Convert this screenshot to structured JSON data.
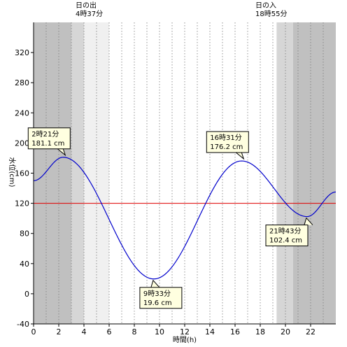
{
  "chart_data": {
    "type": "line",
    "title": "",
    "xlabel": "時間(h)",
    "ylabel": "水位(cm)",
    "xlim": [
      0,
      24
    ],
    "ylim": [
      -40,
      360
    ],
    "x_ticks": [
      0,
      2,
      4,
      6,
      8,
      10,
      12,
      14,
      16,
      18,
      20,
      22
    ],
    "y_ticks": [
      -40,
      0,
      40,
      80,
      120,
      160,
      200,
      240,
      280,
      320
    ],
    "grid": "vertical dotted every 1h",
    "sunrise": {
      "label": "日の出",
      "time": "4時37分",
      "hour": 4.617
    },
    "sunset": {
      "label": "日の入",
      "time": "18時55分",
      "hour": 18.917
    },
    "shading": [
      {
        "from": 0,
        "to": 3.0,
        "color": "#c0c0c0"
      },
      {
        "from": 3.0,
        "to": 4.0,
        "color": "#d6d6d6"
      },
      {
        "from": 4.0,
        "to": 6.0,
        "color": "#f0f0f0"
      },
      {
        "from": 19.3,
        "to": 20.6,
        "color": "#d6d6d6"
      },
      {
        "from": 20.6,
        "to": 24,
        "color": "#c0c0c0"
      }
    ],
    "reference_line": {
      "y": 120,
      "color": "#e00000"
    },
    "series": [
      {
        "color": "#0000cc",
        "extremes": [
          {
            "x": 0,
            "y": 150
          },
          {
            "x": 2.35,
            "y": 181.1
          },
          {
            "x": 9.55,
            "y": 19.6
          },
          {
            "x": 16.517,
            "y": 176.2
          },
          {
            "x": 21.717,
            "y": 102.4
          },
          {
            "x": 24,
            "y": 135
          }
        ]
      }
    ],
    "annotations": [
      {
        "time": "2時21分",
        "value": "181.1 cm",
        "x": 2.35,
        "y": 181.1,
        "side": "above"
      },
      {
        "time": "9時33分",
        "value": "19.6 cm",
        "x": 9.55,
        "y": 19.6,
        "side": "below"
      },
      {
        "time": "16時31分",
        "value": "176.2 cm",
        "x": 16.517,
        "y": 176.2,
        "side": "above"
      },
      {
        "time": "21時43分",
        "value": "102.4 cm",
        "x": 21.717,
        "y": 102.4,
        "side": "below"
      }
    ]
  }
}
